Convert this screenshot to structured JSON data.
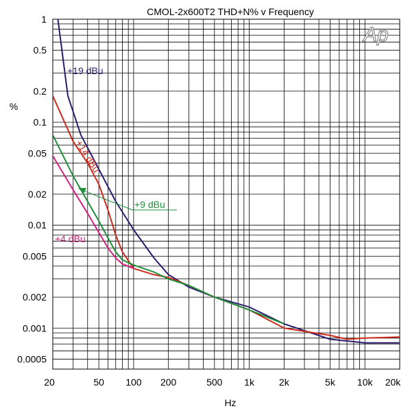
{
  "chart_data": {
    "type": "line",
    "title": "CMOL-2x600T2  THD+N% v Frequency",
    "xlabel": "Hz",
    "ylabel": "%",
    "xscale": "log",
    "yscale": "log",
    "xlim": [
      20,
      20000
    ],
    "ylim": [
      0.0004,
      1
    ],
    "grid": true,
    "x_ticks": [
      {
        "value": 20,
        "label": "20"
      },
      {
        "value": 50,
        "label": "50"
      },
      {
        "value": 100,
        "label": "100"
      },
      {
        "value": 200,
        "label": "200"
      },
      {
        "value": 500,
        "label": "500"
      },
      {
        "value": 1000,
        "label": "1k"
      },
      {
        "value": 2000,
        "label": "2k"
      },
      {
        "value": 5000,
        "label": "5k"
      },
      {
        "value": 10000,
        "label": "10k"
      },
      {
        "value": 20000,
        "label": "20k"
      }
    ],
    "y_ticks": [
      {
        "value": 1,
        "label": "1"
      },
      {
        "value": 0.5,
        "label": "0.5"
      },
      {
        "value": 0.2,
        "label": "0.2"
      },
      {
        "value": 0.1,
        "label": "0.1"
      },
      {
        "value": 0.05,
        "label": "0.05"
      },
      {
        "value": 0.02,
        "label": "0.02"
      },
      {
        "value": 0.01,
        "label": "0.01"
      },
      {
        "value": 0.005,
        "label": "0.005"
      },
      {
        "value": 0.002,
        "label": "0.002"
      },
      {
        "value": 0.001,
        "label": "0.001"
      },
      {
        "value": 0.0005,
        "label": "0.0005"
      }
    ],
    "series": [
      {
        "name": "+19 dBu",
        "color": "#2b1a6e",
        "x": [
          22,
          27,
          35,
          50,
          70,
          100,
          150,
          200,
          300,
          500,
          1000,
          2000,
          5000,
          10000,
          20000
        ],
        "y": [
          1.05,
          0.18,
          0.075,
          0.035,
          0.017,
          0.009,
          0.0048,
          0.0033,
          0.0025,
          0.002,
          0.0016,
          0.0011,
          0.00078,
          0.00072,
          0.00072
        ]
      },
      {
        "name": "+14 dBu",
        "color": "#cc2a1a",
        "x": [
          20,
          30,
          40,
          50,
          60,
          70,
          80,
          100,
          150,
          200,
          300,
          500,
          1000,
          2000,
          5000,
          7000,
          10000,
          20000
        ],
        "y": [
          0.18,
          0.065,
          0.04,
          0.025,
          0.014,
          0.008,
          0.0055,
          0.0038,
          0.0033,
          0.0031,
          0.0026,
          0.002,
          0.0015,
          0.001,
          0.00085,
          0.00078,
          0.0008,
          0.00082
        ]
      },
      {
        "name": "+9 dBu",
        "color": "#1e8f3a",
        "x": [
          20,
          30,
          40,
          50,
          60,
          70,
          80,
          100,
          150,
          200,
          300,
          500,
          1000,
          2000
        ],
        "y": [
          0.075,
          0.03,
          0.017,
          0.011,
          0.0075,
          0.0055,
          0.0046,
          0.0041,
          0.0035,
          0.003,
          0.0026,
          0.002,
          0.0015,
          0.0011
        ]
      },
      {
        "name": "+4 dBu",
        "color": "#d4207f",
        "x": [
          20,
          30,
          40,
          50,
          60,
          70,
          80,
          100
        ],
        "y": [
          0.047,
          0.022,
          0.013,
          0.0085,
          0.006,
          0.0048,
          0.0042,
          0.0038
        ]
      }
    ],
    "annotations": [
      {
        "text": "+19 dBu",
        "color": "#2b1a6e"
      },
      {
        "text": "+14 dBu",
        "color": "#cc2a1a"
      },
      {
        "text": "+9 dBu",
        "color": "#1e8f3a"
      },
      {
        "text": "+4 dBu",
        "color": "#d4207f"
      }
    ],
    "logo_text": "Ap"
  }
}
